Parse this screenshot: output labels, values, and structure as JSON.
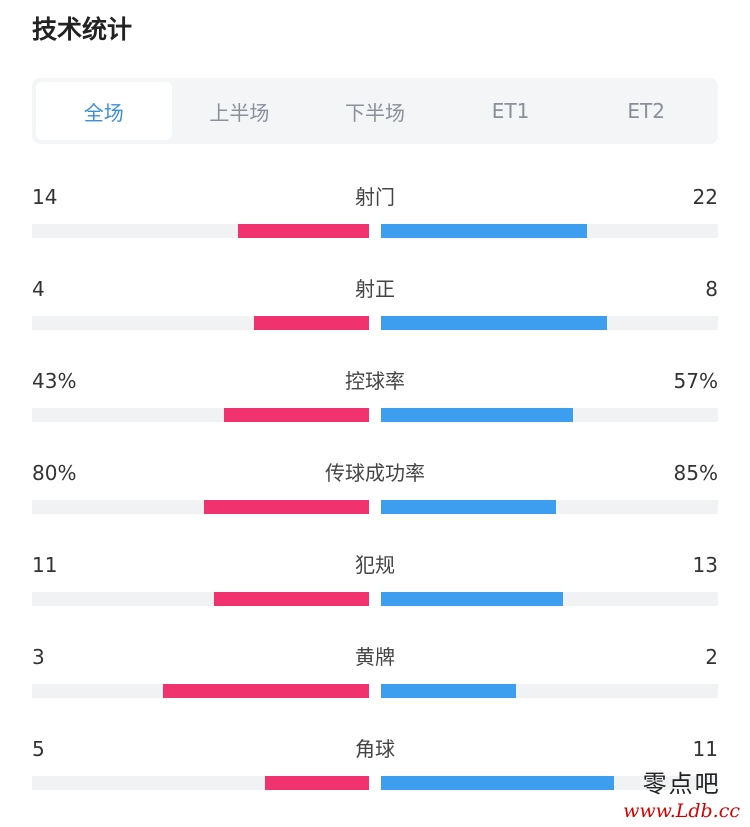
{
  "header": {
    "title": "技术统计"
  },
  "tabs": [
    {
      "label": "全场",
      "active": true
    },
    {
      "label": "上半场",
      "active": false
    },
    {
      "label": "下半场",
      "active": false
    },
    {
      "label": "ET1",
      "active": false
    },
    {
      "label": "ET2",
      "active": false
    }
  ],
  "colors": {
    "home": "#f0336e",
    "away": "#3d9ef0",
    "track": "#f1f2f4",
    "accent": "#3a8fd6"
  },
  "stats": [
    {
      "label": "射门",
      "left": "14",
      "right": "22",
      "left_share": 0.39,
      "right_share": 0.61
    },
    {
      "label": "射正",
      "left": "4",
      "right": "8",
      "left_share": 0.34,
      "right_share": 0.67
    },
    {
      "label": "控球率",
      "left": "43%",
      "right": "57%",
      "left_share": 0.43,
      "right_share": 0.57
    },
    {
      "label": "传球成功率",
      "left": "80%",
      "right": "85%",
      "left_share": 0.49,
      "right_share": 0.52
    },
    {
      "label": "犯规",
      "left": "11",
      "right": "13",
      "left_share": 0.46,
      "right_share": 0.54
    },
    {
      "label": "黄牌",
      "left": "3",
      "right": "2",
      "left_share": 0.61,
      "right_share": 0.4
    },
    {
      "label": "角球",
      "left": "5",
      "right": "11",
      "left_share": 0.31,
      "right_share": 0.69
    }
  ],
  "watermark": {
    "name": "零点吧",
    "url": "www.Ldb.cc"
  }
}
